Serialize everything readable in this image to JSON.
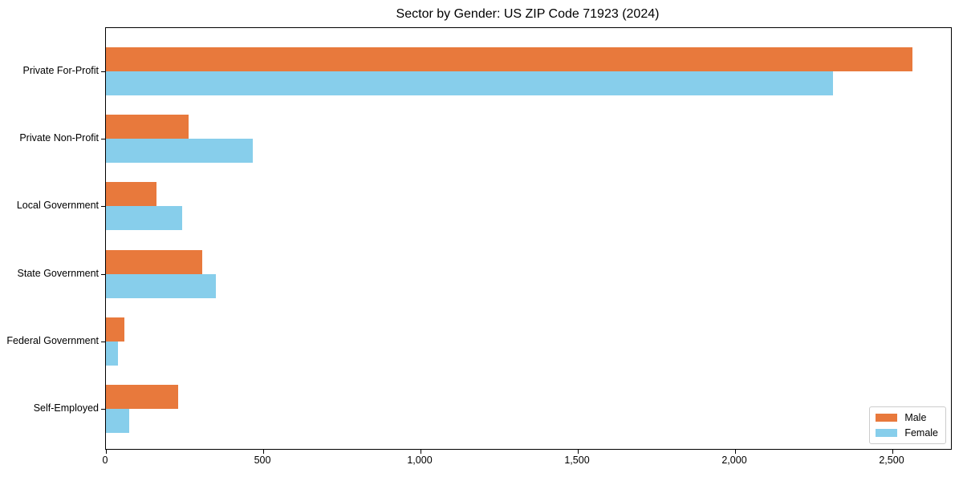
{
  "chart_data": {
    "type": "bar",
    "orientation": "horizontal",
    "title": "Sector by Gender: US ZIP Code 71923 (2024)",
    "categories": [
      "Private For-Profit",
      "Private Non-Profit",
      "Local Government",
      "State Government",
      "Federal Government",
      "Self-Employed"
    ],
    "series": [
      {
        "name": "Male",
        "color": "#e8793c",
        "values": [
          2563,
          262,
          160,
          307,
          59,
          230
        ]
      },
      {
        "name": "Female",
        "color": "#87ceeb",
        "values": [
          2310,
          468,
          243,
          349,
          37,
          74
        ]
      }
    ],
    "xlabel": "",
    "ylabel": "",
    "xlim": [
      0,
      2690
    ],
    "xticks": [
      0,
      500,
      1000,
      1500,
      2000,
      2500
    ],
    "xtick_labels": [
      "0",
      "500",
      "1,000",
      "1,500",
      "2,000",
      "2,500"
    ],
    "grid": false,
    "legend": {
      "position": "lower right",
      "items": [
        {
          "label": "Male"
        },
        {
          "label": "Female"
        }
      ]
    }
  }
}
